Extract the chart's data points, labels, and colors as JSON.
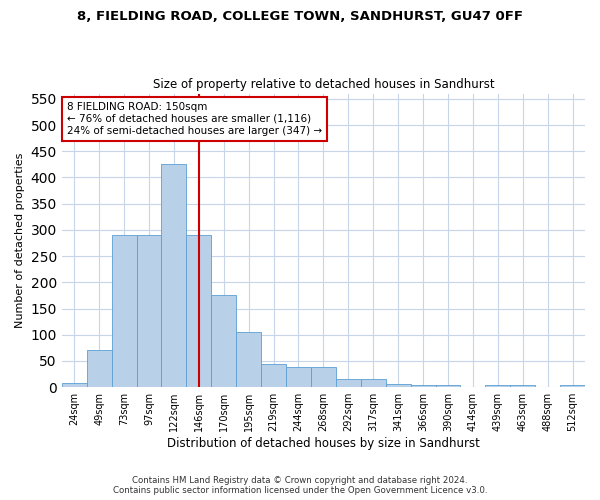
{
  "title": "8, FIELDING ROAD, COLLEGE TOWN, SANDHURST, GU47 0FF",
  "subtitle": "Size of property relative to detached houses in Sandhurst",
  "xlabel": "Distribution of detached houses by size in Sandhurst",
  "ylabel": "Number of detached properties",
  "footer_line1": "Contains HM Land Registry data © Crown copyright and database right 2024.",
  "footer_line2": "Contains public sector information licensed under the Open Government Licence v3.0.",
  "annotation_line1": "8 FIELDING ROAD: 150sqm",
  "annotation_line2": "← 76% of detached houses are smaller (1,116)",
  "annotation_line3": "24% of semi-detached houses are larger (347) →",
  "bar_color": "#b8d0e8",
  "bar_edge_color": "#5a9fd4",
  "vline_color": "#cc0000",
  "grid_color": "#c8d4e8",
  "background_color": "#ffffff",
  "categories": [
    "24sqm",
    "49sqm",
    "73sqm",
    "97sqm",
    "122sqm",
    "146sqm",
    "170sqm",
    "195sqm",
    "219sqm",
    "244sqm",
    "268sqm",
    "292sqm",
    "317sqm",
    "341sqm",
    "366sqm",
    "390sqm",
    "414sqm",
    "439sqm",
    "463sqm",
    "488sqm",
    "512sqm"
  ],
  "values": [
    8,
    71,
    291,
    291,
    425,
    291,
    175,
    105,
    44,
    38,
    38,
    16,
    16,
    7,
    4,
    4,
    0,
    4,
    4,
    0,
    4
  ],
  "ylim": [
    0,
    560
  ],
  "yticks": [
    0,
    50,
    100,
    150,
    200,
    250,
    300,
    350,
    400,
    450,
    500,
    550
  ],
  "vline_x": 5.0,
  "figwidth": 6.0,
  "figheight": 5.0,
  "dpi": 100
}
